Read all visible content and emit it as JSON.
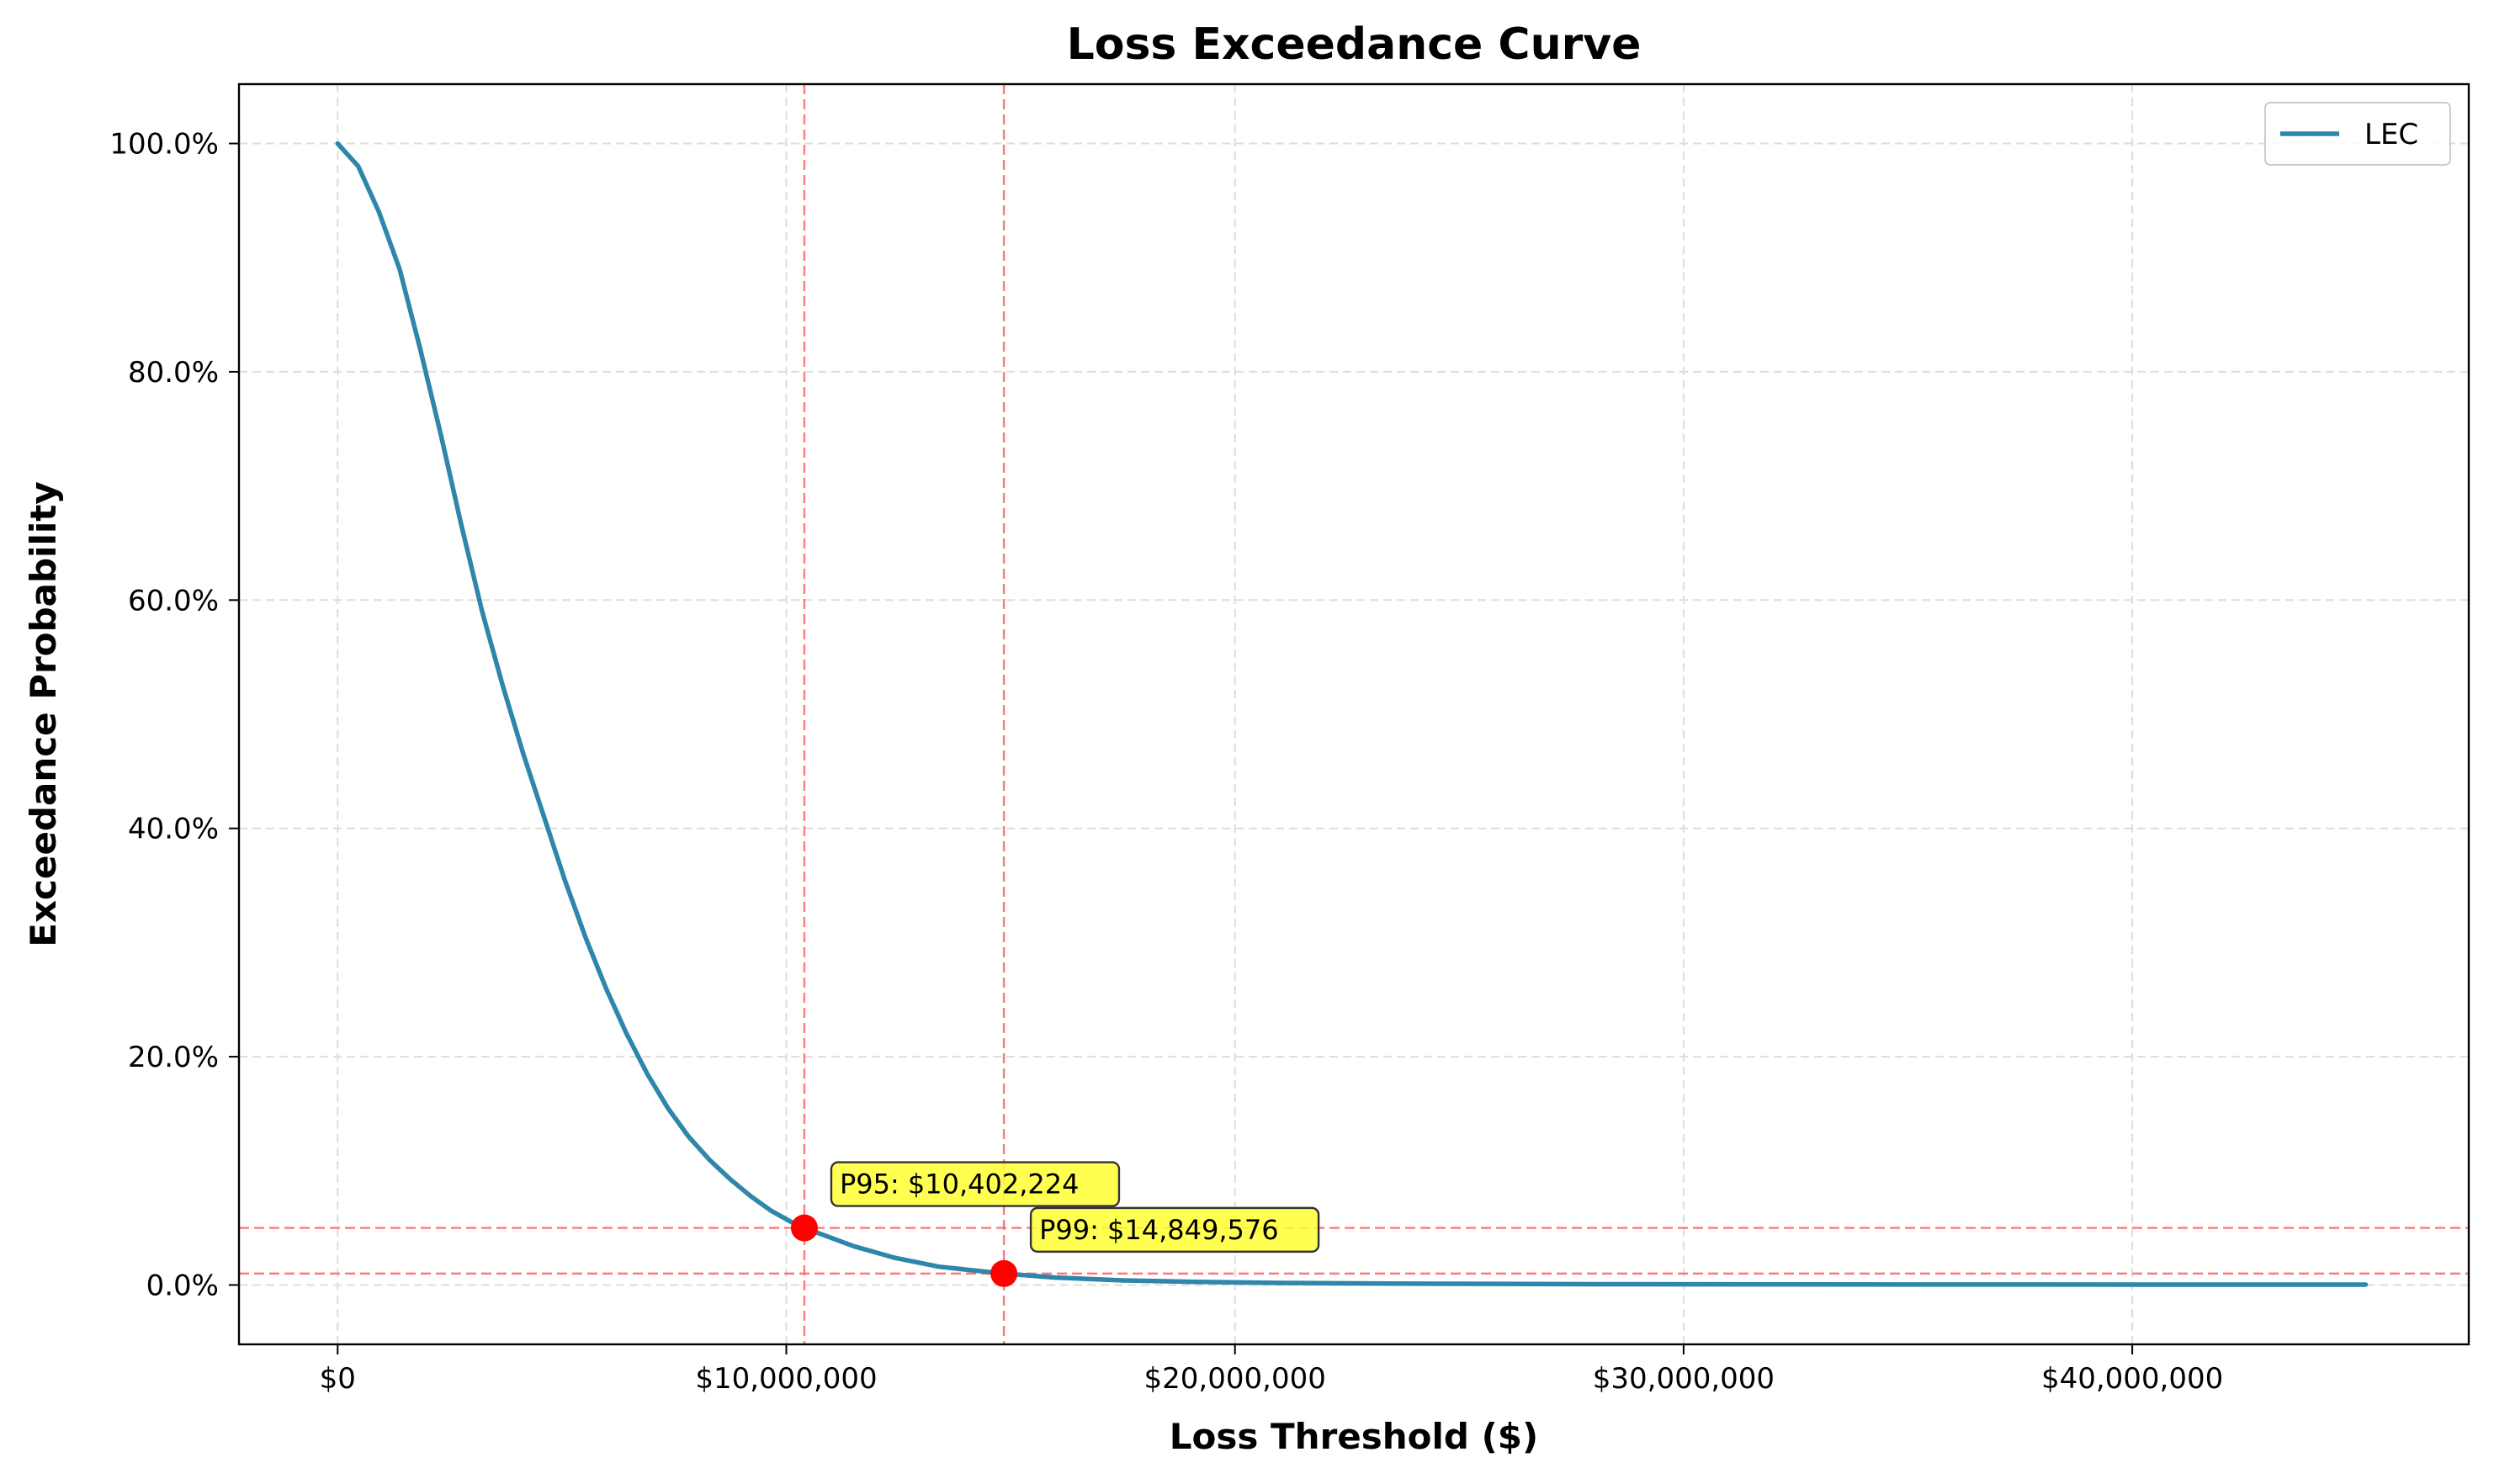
{
  "chart_data": {
    "type": "line",
    "title": "Loss Exceedance Curve",
    "xlabel": "Loss Threshold ($)",
    "ylabel": "Exceedance Probability",
    "xlim": [
      -2200000,
      47500000
    ],
    "ylim": [
      -0.052,
      1.052
    ],
    "x_ticks": [
      {
        "value": 0,
        "label": "$0"
      },
      {
        "value": 10000000,
        "label": "$10,000,000"
      },
      {
        "value": 20000000,
        "label": "$20,000,000"
      },
      {
        "value": 30000000,
        "label": "$30,000,000"
      },
      {
        "value": 40000000,
        "label": "$40,000,000"
      }
    ],
    "y_ticks": [
      {
        "value": 0.0,
        "label": "0.0%"
      },
      {
        "value": 0.2,
        "label": "20.0%"
      },
      {
        "value": 0.4,
        "label": "40.0%"
      },
      {
        "value": 0.6,
        "label": "60.0%"
      },
      {
        "value": 0.8,
        "label": "80.0%"
      },
      {
        "value": 1.0,
        "label": "100.0%"
      }
    ],
    "grid": true,
    "legend_position": "top-right",
    "series": [
      {
        "name": "LEC",
        "color": "#2e86ab",
        "x": [
          0,
          460000,
          920000,
          1380000,
          1840000,
          2300000,
          2760000,
          3220000,
          3680000,
          4140000,
          4600000,
          5060000,
          5520000,
          5980000,
          6440000,
          6900000,
          7360000,
          7820000,
          8280000,
          8740000,
          9200000,
          9660000,
          10120000,
          10402224,
          11500000,
          12400000,
          13400000,
          14849576,
          16000000,
          17500000,
          19000000,
          21000000,
          24000000,
          28000000,
          33000000,
          38000000,
          42000000,
          45200000
        ],
        "y": [
          1.0,
          0.98,
          0.94,
          0.89,
          0.82,
          0.745,
          0.665,
          0.59,
          0.525,
          0.465,
          0.41,
          0.355,
          0.305,
          0.26,
          0.22,
          0.185,
          0.155,
          0.13,
          0.11,
          0.093,
          0.078,
          0.065,
          0.055,
          0.05,
          0.034,
          0.024,
          0.016,
          0.01,
          0.0065,
          0.004,
          0.0028,
          0.0018,
          0.0011,
          0.0007,
          0.0005,
          0.0004,
          0.0003,
          0.0003
        ]
      }
    ],
    "reference_lines": [
      {
        "orientation": "vertical",
        "value": 10402224,
        "color": "#ff6b6b",
        "style": "dashed"
      },
      {
        "orientation": "vertical",
        "value": 14849576,
        "color": "#ff6b6b",
        "style": "dashed"
      },
      {
        "orientation": "horizontal",
        "value": 0.05,
        "color": "#ff6b6b",
        "style": "dashed"
      },
      {
        "orientation": "horizontal",
        "value": 0.01,
        "color": "#ff6b6b",
        "style": "dashed"
      }
    ],
    "markers": [
      {
        "x": 10402224,
        "y": 0.05,
        "color": "#ff0000",
        "label": "P95: $10,402,224",
        "label_color": "#ffff33"
      },
      {
        "x": 14849576,
        "y": 0.01,
        "color": "#ff0000",
        "label": "P99: $14,849,576",
        "label_color": "#ffff33"
      }
    ]
  }
}
